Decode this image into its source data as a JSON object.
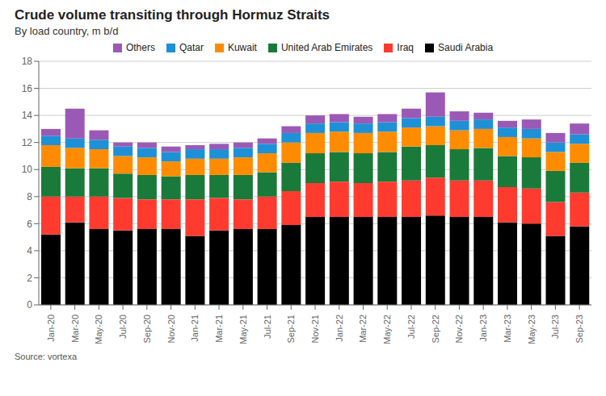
{
  "chart_data": {
    "type": "bar",
    "stacked": true,
    "title": "Crude volume transiting through Hormuz Straits",
    "subtitle": "By load country, m b/d",
    "source": "Source: vortexa",
    "categories": [
      "Jan-20",
      "Mar-20",
      "May-20",
      "Jul-20",
      "Sep-20",
      "Nov-20",
      "Jan-21",
      "Mar-21",
      "May-21",
      "Jul-21",
      "Sep-21",
      "Nov-21",
      "Jan-22",
      "Mar-22",
      "May-22",
      "Jul-22",
      "Sep-22",
      "Nov-22",
      "Jan-23",
      "Mar-23",
      "May-23",
      "Jul-23",
      "Sep-23"
    ],
    "series": [
      {
        "name": "Saudi Arabia",
        "color": "#000000",
        "values": [
          5.2,
          6.1,
          5.6,
          5.5,
          5.6,
          5.6,
          5.1,
          5.5,
          5.6,
          5.6,
          5.9,
          6.5,
          6.5,
          6.5,
          6.5,
          6.5,
          6.6,
          6.5,
          6.5,
          6.1,
          6.0,
          5.1,
          5.8
        ]
      },
      {
        "name": "Iraq",
        "color": "#ff3b2f",
        "values": [
          2.8,
          1.9,
          2.4,
          2.4,
          2.2,
          2.2,
          2.7,
          2.4,
          2.2,
          2.4,
          2.5,
          2.5,
          2.6,
          2.5,
          2.6,
          2.7,
          2.8,
          2.7,
          2.7,
          2.6,
          2.6,
          2.5,
          2.5
        ]
      },
      {
        "name": "United Arab Emirates",
        "color": "#1a7a3a",
        "values": [
          2.2,
          2.1,
          2.1,
          1.8,
          1.8,
          1.7,
          1.8,
          1.7,
          1.8,
          1.8,
          2.1,
          2.2,
          2.2,
          2.2,
          2.2,
          2.5,
          2.4,
          2.3,
          2.4,
          2.3,
          2.3,
          2.3,
          2.2
        ]
      },
      {
        "name": "Kuwait",
        "color": "#ff8c00",
        "values": [
          1.6,
          1.5,
          1.4,
          1.3,
          1.3,
          1.1,
          1.2,
          1.2,
          1.3,
          1.4,
          1.5,
          1.5,
          1.5,
          1.5,
          1.5,
          1.4,
          1.4,
          1.4,
          1.4,
          1.4,
          1.4,
          1.4,
          1.4
        ]
      },
      {
        "name": "Qatar",
        "color": "#1e90d6",
        "values": [
          0.7,
          0.7,
          0.7,
          0.7,
          0.7,
          0.7,
          0.7,
          0.7,
          0.7,
          0.7,
          0.7,
          0.7,
          0.7,
          0.7,
          0.7,
          0.7,
          0.7,
          0.7,
          0.7,
          0.7,
          0.7,
          0.7,
          0.7
        ]
      },
      {
        "name": "Others",
        "color": "#9b59b6",
        "values": [
          0.5,
          2.2,
          0.7,
          0.3,
          0.4,
          0.4,
          0.3,
          0.4,
          0.4,
          0.4,
          0.5,
          0.6,
          0.6,
          0.5,
          0.6,
          0.7,
          1.8,
          0.7,
          0.5,
          0.5,
          0.7,
          0.7,
          0.8
        ]
      }
    ],
    "ylim": [
      0,
      18
    ],
    "yticks": [
      0,
      2,
      4,
      6,
      8,
      10,
      12,
      14,
      16,
      18
    ],
    "grid": true,
    "legend": "top"
  }
}
